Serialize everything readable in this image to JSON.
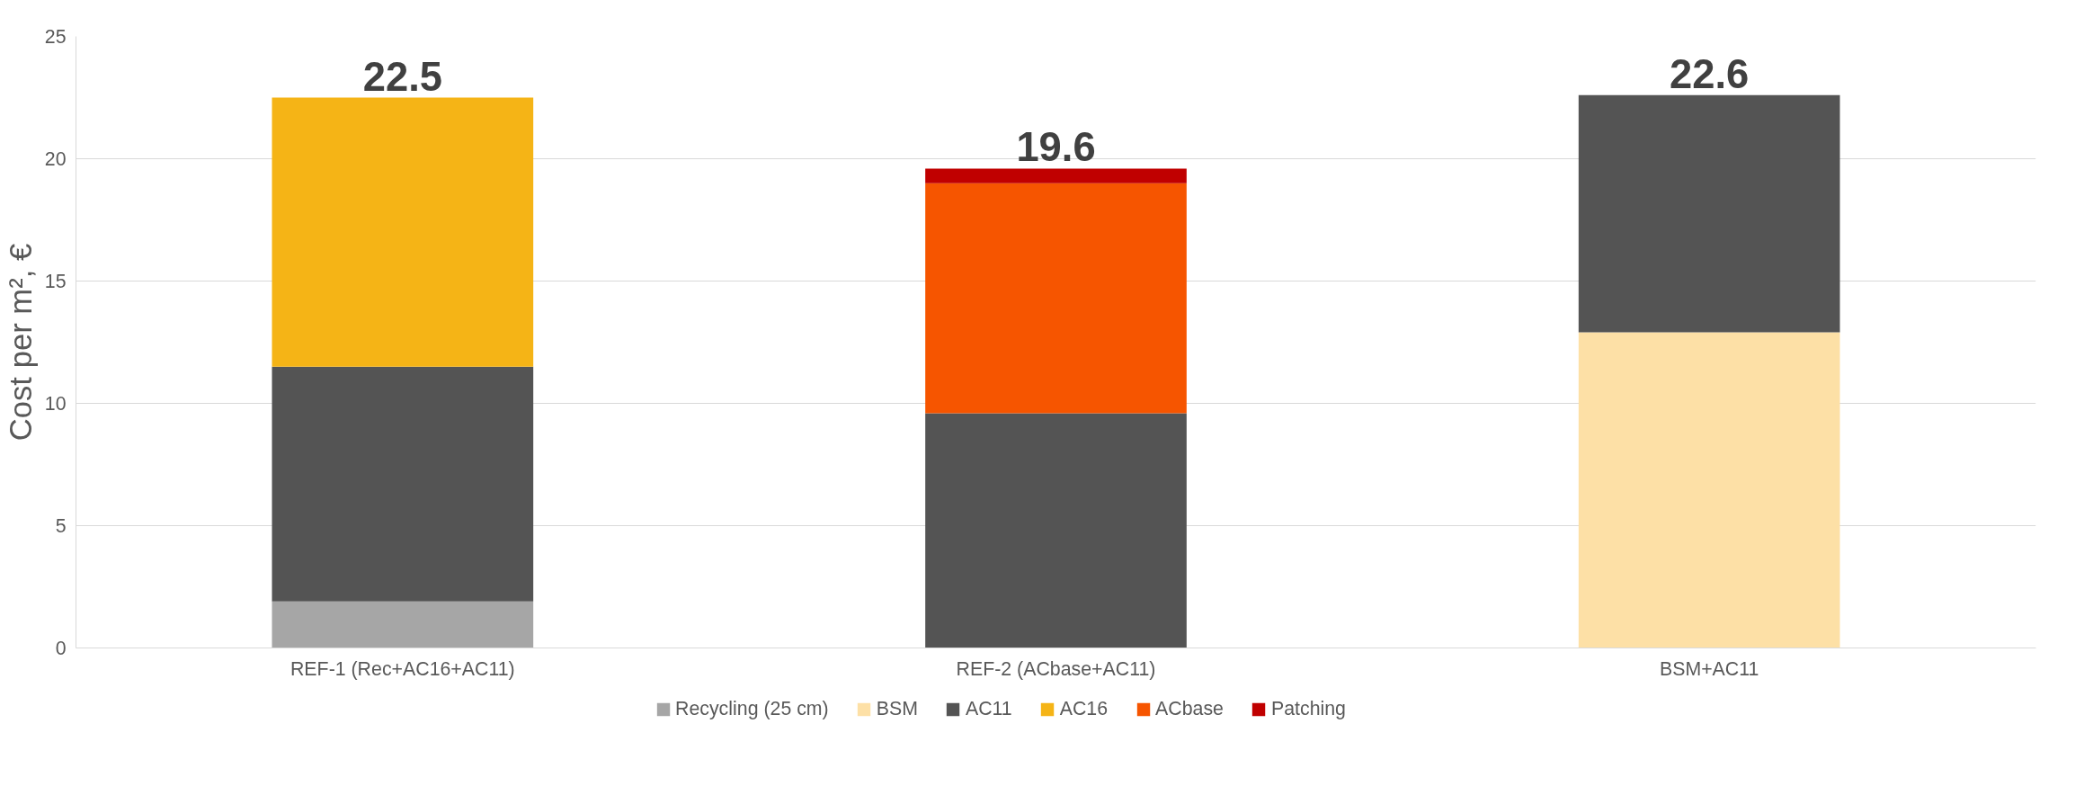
{
  "chart_data": {
    "type": "bar",
    "stacked": true,
    "ylabel": "Cost per m², €",
    "categories": [
      "REF-1 (Rec+AC16+AC11)",
      "REF-2 (ACbase+AC11)",
      "BSM+AC11"
    ],
    "series": [
      {
        "name": "Recycling (25 cm)",
        "color": "#a6a6a6",
        "values": [
          1.9,
          null,
          null
        ]
      },
      {
        "name": "BSM",
        "color": "#fde0a6",
        "values": [
          null,
          null,
          12.9
        ]
      },
      {
        "name": "AC11",
        "color": "#545454",
        "values": [
          9.6,
          9.6,
          9.7
        ]
      },
      {
        "name": "AC16",
        "color": "#f5b416",
        "values": [
          11.0,
          null,
          null
        ]
      },
      {
        "name": "ACbase",
        "color": "#f65500",
        "values": [
          null,
          9.4,
          null
        ]
      },
      {
        "name": "Patching",
        "color": "#c00000",
        "values": [
          null,
          0.6,
          null
        ]
      }
    ],
    "totals": [
      "22.5",
      "19.6",
      "22.6"
    ],
    "ylim": [
      0,
      25
    ],
    "yticks": [
      0,
      5,
      10,
      15,
      20,
      25
    ],
    "grid": "y",
    "legend": "bottom"
  }
}
